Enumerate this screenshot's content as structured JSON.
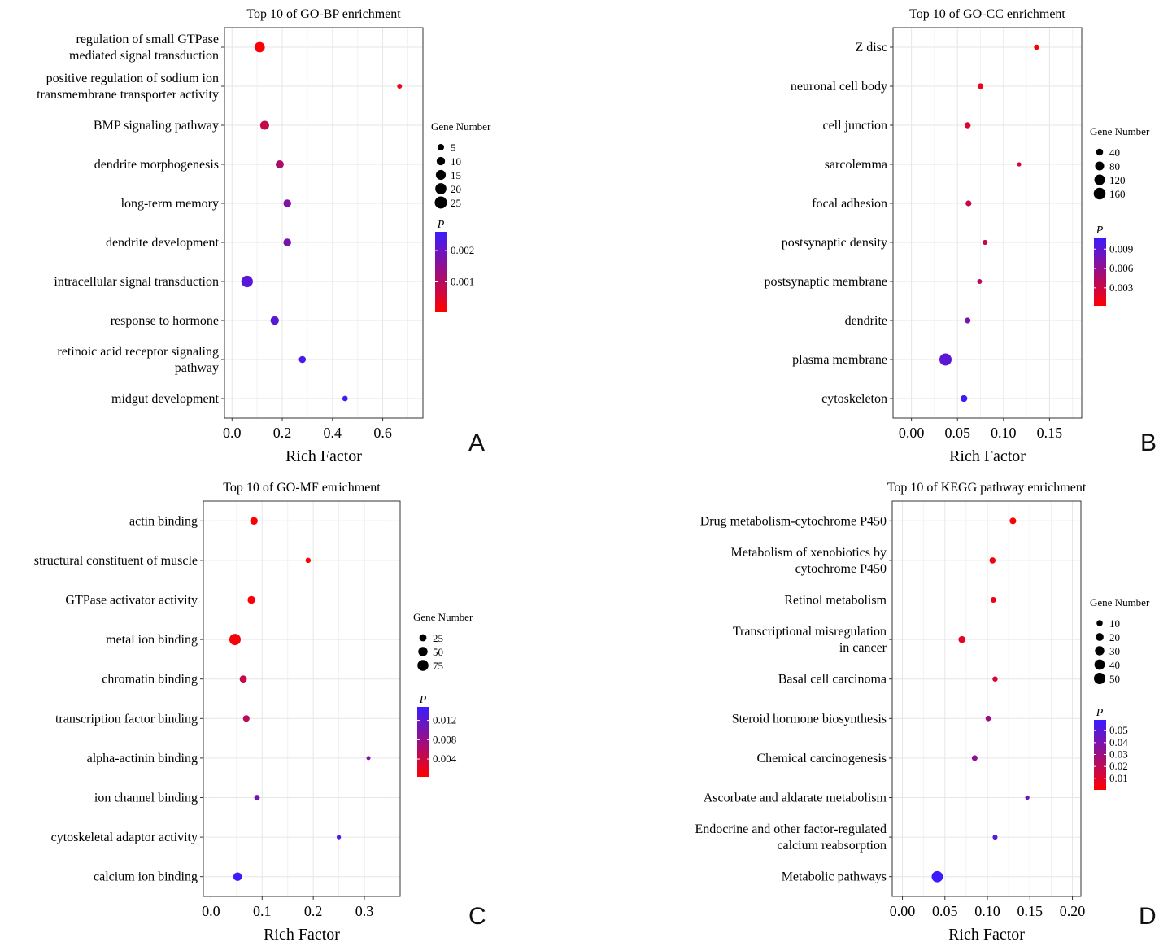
{
  "chart_data": [
    {
      "type": "scatter",
      "panel_letter": "A",
      "title": "Top 10 of GO-BP enrichment",
      "xlabel": "Rich Factor",
      "ylabel": "",
      "xlim": [
        -0.03,
        0.76
      ],
      "xticks": [
        0.0,
        0.2,
        0.4,
        0.6
      ],
      "xtick_labels": [
        "0.0",
        "0.2",
        "0.4",
        "0.6"
      ],
      "grid": true,
      "categories": [
        "regulation of small GTPase\nmediated signal transduction",
        "positive regulation of sodium ion\ntransmembrane transporter activity",
        "BMP signaling pathway",
        "dendrite morphogenesis",
        "long-term memory",
        "dendrite development",
        "intracellular signal transduction",
        "response to hormone",
        "retinoic acid receptor signaling\npathway",
        "midgut development"
      ],
      "rich_factor": [
        0.11,
        0.667,
        0.13,
        0.19,
        0.22,
        0.22,
        0.06,
        0.17,
        0.28,
        0.45
      ],
      "gene_number": [
        17,
        2,
        12,
        9,
        8,
        8,
        22,
        10,
        6,
        3
      ],
      "p_value": [
        0.0001,
        0.0002,
        0.0008,
        0.0011,
        0.0017,
        0.0018,
        0.0022,
        0.0022,
        0.0024,
        0.0025
      ],
      "size_legend": {
        "title": "Gene Number",
        "values": [
          5,
          10,
          15,
          20,
          25
        ]
      },
      "color_legend": {
        "title": "P",
        "ticks": [
          0.001,
          0.002
        ],
        "tick_labels": [
          "0.001",
          "0.002"
        ],
        "range": [
          5e-05,
          0.0026
        ],
        "low_color": "#ff0000",
        "high_color": "#3a1cff"
      }
    },
    {
      "type": "scatter",
      "panel_letter": "B",
      "title": "Top 10 of GO-CC enrichment",
      "xlabel": "Rich Factor",
      "ylabel": "",
      "xlim": [
        -0.02,
        0.185
      ],
      "xticks": [
        0.0,
        0.05,
        0.1,
        0.15
      ],
      "xtick_labels": [
        "0.00",
        "0.05",
        "0.10",
        "0.15"
      ],
      "grid": true,
      "categories": [
        "Z disc",
        "neuronal cell body",
        "cell junction",
        "sarcolemma",
        "focal adhesion",
        "postsynaptic density",
        "postsynaptic membrane",
        "dendrite",
        "plasma membrane",
        "cytoskeleton"
      ],
      "rich_factor": [
        0.136,
        0.075,
        0.061,
        0.117,
        0.062,
        0.08,
        0.074,
        0.061,
        0.037,
        0.057
      ],
      "gene_number": [
        18,
        24,
        28,
        8,
        25,
        16,
        14,
        24,
        170,
        38
      ],
      "p_value": [
        0.0005,
        0.0012,
        0.0022,
        0.0025,
        0.003,
        0.0035,
        0.004,
        0.0075,
        0.009,
        0.0105
      ],
      "size_legend": {
        "title": "Gene Number",
        "values": [
          40,
          80,
          120,
          160
        ]
      },
      "color_legend": {
        "title": "P",
        "ticks": [
          0.003,
          0.006,
          0.009
        ],
        "tick_labels": [
          "0.003",
          "0.006",
          "0.009"
        ],
        "range": [
          0.0002,
          0.0108
        ],
        "low_color": "#ff0000",
        "high_color": "#3a1cff"
      }
    },
    {
      "type": "scatter",
      "panel_letter": "C",
      "title": "Top 10 of GO-MF enrichment",
      "xlabel": "Rich Factor",
      "ylabel": "",
      "xlim": [
        -0.015,
        0.37
      ],
      "xticks": [
        0.0,
        0.1,
        0.2,
        0.3
      ],
      "xtick_labels": [
        "0.0",
        "0.1",
        "0.2",
        "0.3"
      ],
      "grid": true,
      "categories": [
        "actin binding",
        "structural constituent of muscle",
        "GTPase activator activity",
        "metal ion binding",
        "chromatin binding",
        "transcription factor binding",
        "alpha-actinin binding",
        "ion channel binding",
        "cytoskeletal adaptor activity",
        "calcium ion binding"
      ],
      "rich_factor": [
        0.084,
        0.19,
        0.079,
        0.047,
        0.063,
        0.069,
        0.308,
        0.09,
        0.25,
        0.052
      ],
      "gene_number": [
        30,
        10,
        30,
        82,
        25,
        20,
        4,
        12,
        5,
        40
      ],
      "p_value": [
        0.0005,
        0.0006,
        0.0008,
        0.0009,
        0.0045,
        0.0055,
        0.0095,
        0.0105,
        0.0135,
        0.0145
      ],
      "size_legend": {
        "title": "Gene Number",
        "values": [
          25,
          50,
          75
        ]
      },
      "color_legend": {
        "title": "P",
        "ticks": [
          0.004,
          0.008,
          0.012
        ],
        "tick_labels": [
          "0.004",
          "0.008",
          "0.012"
        ],
        "range": [
          0.0003,
          0.0148
        ],
        "low_color": "#ff0000",
        "high_color": "#3a1cff"
      }
    },
    {
      "type": "scatter",
      "panel_letter": "D",
      "title": "Top 10 of KEGG pathway enrichment",
      "xlabel": "Rich Factor",
      "ylabel": "",
      "xlim": [
        -0.012,
        0.21
      ],
      "xticks": [
        0.0,
        0.05,
        0.1,
        0.15,
        0.2
      ],
      "xtick_labels": [
        "0.00",
        "0.05",
        "0.10",
        "0.15",
        "0.20"
      ],
      "grid": true,
      "categories": [
        "Drug metabolism-cytochrome P450",
        "Metabolism of xenobiotics by\ncytochrome P450",
        "Retinol metabolism",
        "Transcriptional misregulation\nin cancer",
        "Basal cell carcinoma",
        "Steroid hormone biosynthesis",
        "Chemical carcinogenesis",
        "Ascorbate and aldarate metabolism",
        "Endocrine and other factor-regulated\ncalcium reabsorption",
        "Metabolic pathways"
      ],
      "rich_factor": [
        0.13,
        0.106,
        0.107,
        0.07,
        0.109,
        0.101,
        0.085,
        0.147,
        0.109,
        0.041
      ],
      "gene_number": [
        12,
        10,
        8,
        14,
        6,
        7,
        8,
        3,
        5,
        48
      ],
      "p_value": [
        0.0005,
        0.004,
        0.006,
        0.008,
        0.012,
        0.03,
        0.034,
        0.042,
        0.05,
        0.058
      ],
      "size_legend": {
        "title": "Gene Number",
        "values": [
          10,
          20,
          30,
          40,
          50
        ]
      },
      "color_legend": {
        "title": "P",
        "ticks": [
          0.01,
          0.02,
          0.03,
          0.04,
          0.05
        ],
        "tick_labels": [
          "0.01",
          "0.02",
          "0.03",
          "0.04",
          "0.05"
        ],
        "range": [
          0.0003,
          0.059
        ],
        "low_color": "#ff0000",
        "high_color": "#3a1cff"
      }
    }
  ]
}
